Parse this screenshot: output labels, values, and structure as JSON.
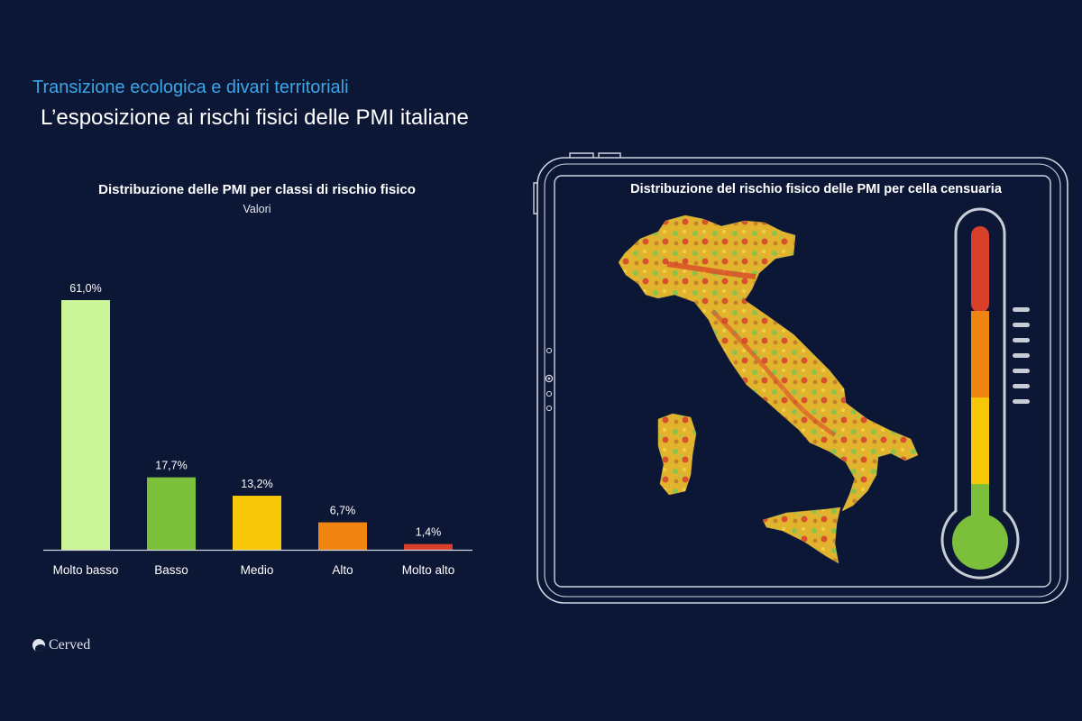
{
  "header": {
    "supertitle": "Transizione ecologica e divari territoriali",
    "title": "L’esposizione ai rischi fisici delle PMI italiane"
  },
  "chart_data": {
    "type": "bar",
    "title": "Distribuzione delle PMI per classi di rischio fisico",
    "subtitle": "Valori",
    "categories": [
      "Molto basso",
      "Basso",
      "Medio",
      "Alto",
      "Molto alto"
    ],
    "values": [
      61.0,
      17.7,
      13.2,
      6.7,
      1.4
    ],
    "value_labels": [
      "61,0%",
      "17,7%",
      "13,2%",
      "6,7%",
      "1,4%"
    ],
    "colors": [
      "#ccf59a",
      "#7cbf3a",
      "#f8c808",
      "#ef8410",
      "#d8402a"
    ],
    "ylim": [
      0,
      61
    ],
    "grid": false,
    "legend": "none"
  },
  "map_panel": {
    "title": "Distribuzione del rischio fisico delle PMI per cella censuaria",
    "thermometer_colors": [
      "#d8402a",
      "#ef8410",
      "#f8c808",
      "#7cbf3a"
    ]
  },
  "footer": {
    "brand": "Cerved"
  }
}
